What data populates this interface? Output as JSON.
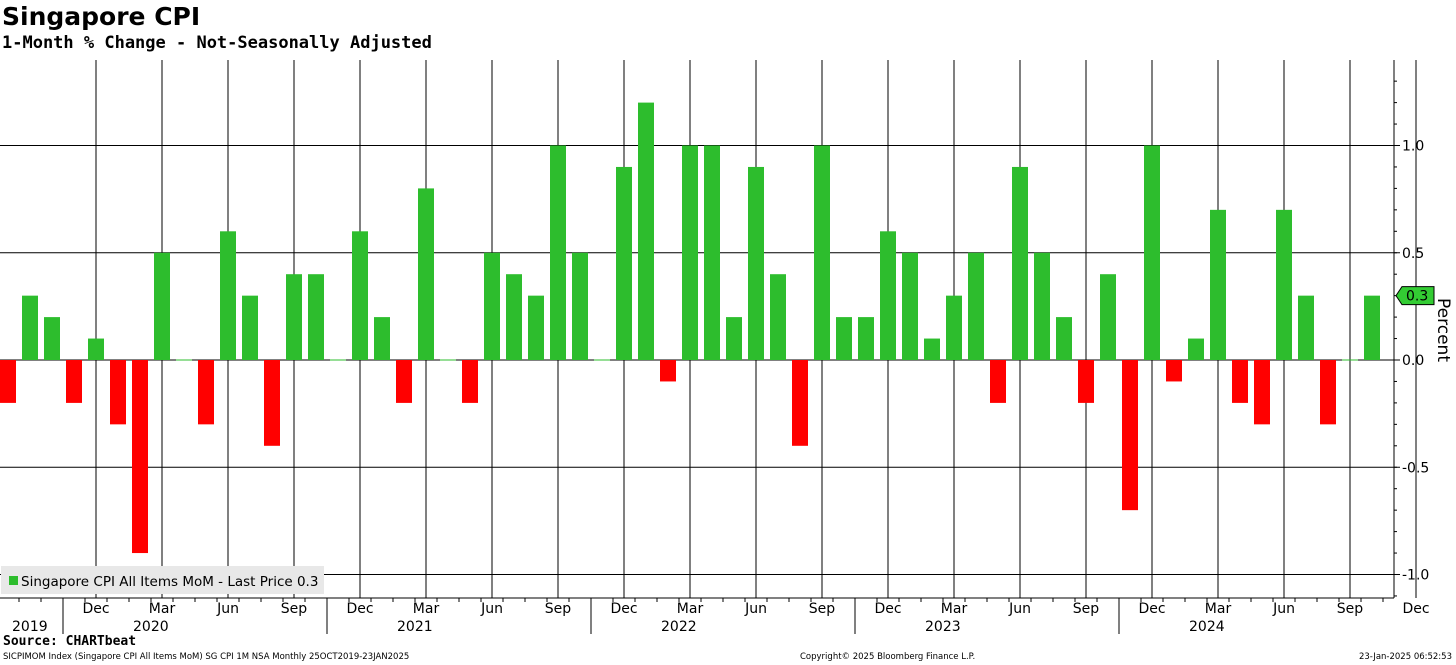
{
  "title": "Singapore CPI",
  "subtitle": "1-Month % Change - Not-Seasonally Adjusted",
  "footer": {
    "source": "Source: CHARTbeat",
    "ticker": "SICPIMOM Index (Singapore CPI All Items MoM) SG CPI 1M NSA  Monthly 25OCT2019-23JAN2025",
    "copyright": "Copyright© 2025 Bloomberg Finance L.P.",
    "timestamp": "23-Jan-2025 06:52:53"
  },
  "colors": {
    "positive": "#2dbd2d",
    "negative": "#ff0000",
    "last_price_tag": "#33cc33",
    "grid": "#000000"
  },
  "chart_data": {
    "type": "bar",
    "title": "Singapore CPI",
    "subtitle": "1-Month % Change - Not-Seasonally Adjusted",
    "ylabel": "Percent",
    "ylim": [
      -1.1,
      1.3
    ],
    "yticks": [
      -1.0,
      -0.5,
      0.0,
      0.5,
      1.0
    ],
    "ytick_labels": [
      "-1.0",
      "-0.5",
      "0.0",
      "0.5",
      "1.0"
    ],
    "legend": {
      "label": "Singapore CPI All Items MoM - Last Price 0.3",
      "position": "bottom-left"
    },
    "last_price_label": "0.3",
    "last_price": 0.3,
    "grid": true,
    "x_month_ticks": [
      "Dec",
      "Mar",
      "Jun",
      "Sep",
      "Dec",
      "Mar",
      "Jun",
      "Sep",
      "Dec",
      "Mar",
      "Jun",
      "Sep",
      "Dec",
      "Mar",
      "Jun",
      "Sep",
      "Dec",
      "Mar",
      "Jun",
      "Sep",
      "Dec"
    ],
    "x_year_labels": [
      "2019",
      "2020",
      "2021",
      "2022",
      "2023",
      "2024"
    ],
    "categories": [
      "Oct 2019",
      "Nov 2019",
      "Dec 2019",
      "Jan 2020",
      "Feb 2020",
      "Mar 2020",
      "Apr 2020",
      "May 2020",
      "Jun 2020",
      "Jul 2020",
      "Aug 2020",
      "Sep 2020",
      "Oct 2020",
      "Nov 2020",
      "Dec 2020",
      "Jan 2021",
      "Feb 2021",
      "Mar 2021",
      "Apr 2021",
      "May 2021",
      "Jun 2021",
      "Jul 2021",
      "Aug 2021",
      "Sep 2021",
      "Oct 2021",
      "Nov 2021",
      "Dec 2021",
      "Jan 2022",
      "Feb 2022",
      "Mar 2022",
      "Apr 2022",
      "May 2022",
      "Jun 2022",
      "Jul 2022",
      "Aug 2022",
      "Sep 2022",
      "Oct 2022",
      "Nov 2022",
      "Dec 2022",
      "Jan 2023",
      "Feb 2023",
      "Mar 2023",
      "Apr 2023",
      "May 2023",
      "Jun 2023",
      "Jul 2023",
      "Aug 2023",
      "Sep 2023",
      "Oct 2023",
      "Nov 2023",
      "Dec 2023",
      "Jan 2024",
      "Feb 2024",
      "Mar 2024",
      "Apr 2024",
      "May 2024",
      "Jun 2024",
      "Jul 2024",
      "Aug 2024",
      "Sep 2024",
      "Oct 2024",
      "Nov 2024",
      "Dec 2024"
    ],
    "values": [
      -0.2,
      0.3,
      0.2,
      -0.2,
      0.1,
      -0.3,
      -0.9,
      0.5,
      0.0,
      -0.3,
      0.6,
      0.3,
      -0.4,
      0.4,
      0.4,
      0.0,
      0.6,
      0.2,
      -0.2,
      0.8,
      0.0,
      -0.2,
      0.5,
      0.4,
      0.3,
      1.0,
      0.5,
      0.0,
      0.9,
      1.2,
      -0.1,
      1.0,
      1.0,
      0.2,
      0.9,
      0.4,
      -0.4,
      1.0,
      0.2,
      0.2,
      0.6,
      0.5,
      0.1,
      0.3,
      0.5,
      -0.2,
      0.9,
      0.5,
      0.2,
      -0.2,
      0.4,
      -0.7,
      1.0,
      -0.1,
      0.1,
      0.7,
      -0.2,
      -0.3,
      0.7,
      0.3,
      -0.3,
      0.0,
      0.3
    ]
  }
}
